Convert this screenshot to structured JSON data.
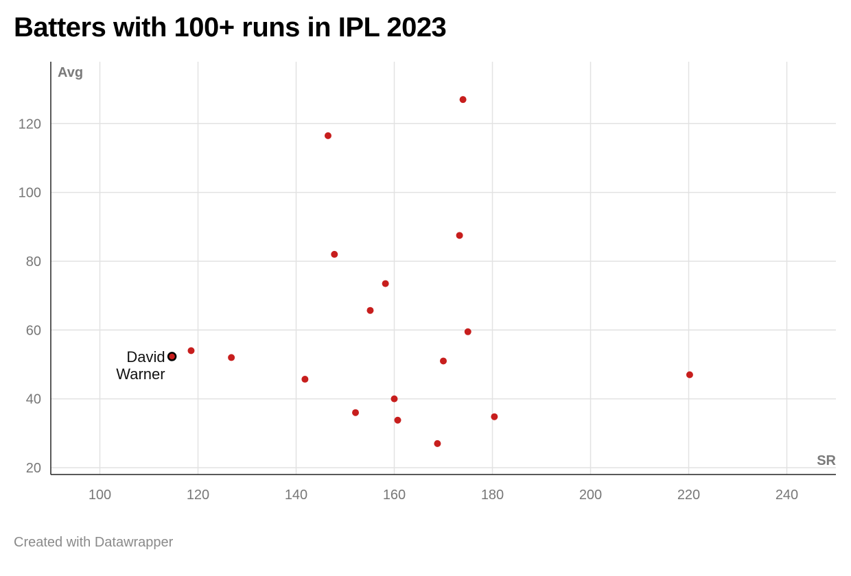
{
  "title": "Batters with 100+ runs in IPL 2023",
  "footer": "Created with Datawrapper",
  "chart_data": {
    "type": "scatter",
    "xlabel": "SR",
    "ylabel": "Avg",
    "xlim": [
      90,
      250
    ],
    "ylim": [
      18,
      138
    ],
    "xticks": [
      100,
      120,
      140,
      160,
      180,
      200,
      220,
      240
    ],
    "yticks": [
      20,
      40,
      60,
      80,
      100,
      120
    ],
    "grid": true,
    "point_color": "#c71e1d",
    "highlight_color": "#c71e1d",
    "highlight_stroke": "#000000",
    "points": [
      {
        "x": 174.0,
        "y": 127.0
      },
      {
        "x": 146.5,
        "y": 116.5
      },
      {
        "x": 173.3,
        "y": 87.5
      },
      {
        "x": 147.8,
        "y": 82.0
      },
      {
        "x": 158.2,
        "y": 73.5
      },
      {
        "x": 155.1,
        "y": 65.7
      },
      {
        "x": 175.0,
        "y": 59.5
      },
      {
        "x": 118.6,
        "y": 54.0
      },
      {
        "x": 126.8,
        "y": 52.0
      },
      {
        "x": 170.0,
        "y": 51.0
      },
      {
        "x": 220.2,
        "y": 47.0
      },
      {
        "x": 141.8,
        "y": 45.7
      },
      {
        "x": 160.0,
        "y": 40.0
      },
      {
        "x": 152.1,
        "y": 36.0
      },
      {
        "x": 160.7,
        "y": 33.8
      },
      {
        "x": 180.4,
        "y": 34.8
      },
      {
        "x": 168.8,
        "y": 27.0
      }
    ],
    "highlight": {
      "x": 114.7,
      "y": 52.3,
      "label_lines": [
        "David",
        "Warner"
      ]
    }
  }
}
